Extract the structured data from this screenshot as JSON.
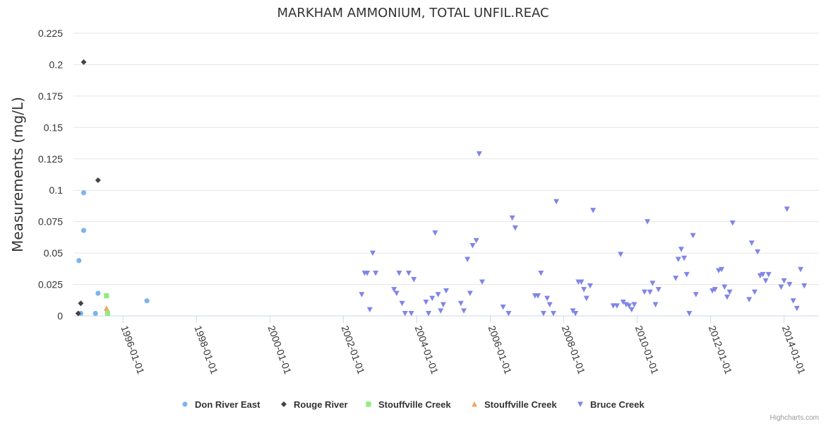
{
  "credit": "Highcharts.com",
  "chart_data": {
    "type": "scatter",
    "title": "MARKHAM AMMONIUM, TOTAL UNFIL.REAC",
    "xlabel": "",
    "ylabel": "Measurements (mg/L)",
    "ylim": [
      0,
      0.225
    ],
    "yticks": [
      "0",
      "0.025",
      "0.05",
      "0.075",
      "0.1",
      "0.125",
      "0.15",
      "0.175",
      "0.2",
      "0.225"
    ],
    "xlim": [
      1994.65,
      2014.95
    ],
    "xticks": [
      {
        "label": "1996-01-01",
        "x": 1996.0
      },
      {
        "label": "1998-01-01",
        "x": 1998.0
      },
      {
        "label": "2000-01-01",
        "x": 2000.0
      },
      {
        "label": "2002-01-01",
        "x": 2002.0
      },
      {
        "label": "2004-01-01",
        "x": 2004.0
      },
      {
        "label": "2006-01-01",
        "x": 2006.0
      },
      {
        "label": "2008-01-01",
        "x": 2008.0
      },
      {
        "label": "2010-01-01",
        "x": 2010.0
      },
      {
        "label": "2012-01-01",
        "x": 2012.0
      },
      {
        "label": "2014-01-01",
        "x": 2014.0
      }
    ],
    "legend_position": "bottom-center",
    "series": [
      {
        "name": "Don River East",
        "color": "#7cb5ec",
        "marker": "circle",
        "points": [
          [
            1994.8,
            0.044
          ],
          [
            1994.85,
            0.002
          ],
          [
            1994.93,
            0.098
          ],
          [
            1994.93,
            0.068
          ],
          [
            1995.25,
            0.002
          ],
          [
            1995.32,
            0.018
          ],
          [
            1996.65,
            0.012
          ]
        ]
      },
      {
        "name": "Rouge River",
        "color": "#434348",
        "marker": "diamond",
        "points": [
          [
            1994.78,
            0.002
          ],
          [
            1994.85,
            0.01
          ],
          [
            1994.93,
            0.202
          ],
          [
            1995.32,
            0.108
          ]
        ]
      },
      {
        "name": "Stouffville Creek",
        "color": "#90ed7d",
        "marker": "square",
        "points": [
          [
            1995.55,
            0.016
          ],
          [
            1995.58,
            0.002
          ]
        ]
      },
      {
        "name": "Stouffville Creek",
        "color": "#f7a35c",
        "marker": "triangle",
        "points": [
          [
            1995.55,
            0.006
          ]
        ]
      },
      {
        "name": "Bruce Creek",
        "color": "#8085e9",
        "marker": "triangle-down",
        "points": [
          [
            2002.5,
            0.017
          ],
          [
            2002.58,
            0.034
          ],
          [
            2002.65,
            0.034
          ],
          [
            2002.72,
            0.005
          ],
          [
            2002.8,
            0.05
          ],
          [
            2002.88,
            0.034
          ],
          [
            2003.38,
            0.021
          ],
          [
            2003.45,
            0.018
          ],
          [
            2003.52,
            0.034
          ],
          [
            2003.6,
            0.01
          ],
          [
            2003.68,
            0.002
          ],
          [
            2003.78,
            0.034
          ],
          [
            2003.85,
            0.002
          ],
          [
            2003.92,
            0.029
          ],
          [
            2004.25,
            0.011
          ],
          [
            2004.32,
            0.002
          ],
          [
            2004.42,
            0.014
          ],
          [
            2004.5,
            0.066
          ],
          [
            2004.58,
            0.017
          ],
          [
            2004.65,
            0.004
          ],
          [
            2004.72,
            0.009
          ],
          [
            2004.8,
            0.02
          ],
          [
            2005.2,
            0.01
          ],
          [
            2005.28,
            0.004
          ],
          [
            2005.38,
            0.045
          ],
          [
            2005.45,
            0.018
          ],
          [
            2005.52,
            0.056
          ],
          [
            2005.62,
            0.06
          ],
          [
            2005.7,
            0.129
          ],
          [
            2005.78,
            0.027
          ],
          [
            2006.35,
            0.007
          ],
          [
            2006.5,
            0.002
          ],
          [
            2006.6,
            0.078
          ],
          [
            2006.68,
            0.07
          ],
          [
            2007.22,
            0.016
          ],
          [
            2007.3,
            0.016
          ],
          [
            2007.38,
            0.034
          ],
          [
            2007.45,
            0.002
          ],
          [
            2007.55,
            0.014
          ],
          [
            2007.62,
            0.009
          ],
          [
            2007.72,
            0.002
          ],
          [
            2007.8,
            0.091
          ],
          [
            2008.25,
            0.004
          ],
          [
            2008.32,
            0.002
          ],
          [
            2008.4,
            0.027
          ],
          [
            2008.48,
            0.027
          ],
          [
            2008.55,
            0.021
          ],
          [
            2008.62,
            0.014
          ],
          [
            2008.72,
            0.024
          ],
          [
            2008.8,
            0.084
          ],
          [
            2009.35,
            0.008
          ],
          [
            2009.45,
            0.008
          ],
          [
            2009.55,
            0.049
          ],
          [
            2009.62,
            0.011
          ],
          [
            2009.7,
            0.009
          ],
          [
            2009.78,
            0.008
          ],
          [
            2009.85,
            0.005
          ],
          [
            2009.92,
            0.009
          ],
          [
            2010.2,
            0.019
          ],
          [
            2010.28,
            0.075
          ],
          [
            2010.35,
            0.019
          ],
          [
            2010.42,
            0.026
          ],
          [
            2010.5,
            0.009
          ],
          [
            2010.58,
            0.021
          ],
          [
            2011.05,
            0.03
          ],
          [
            2011.12,
            0.045
          ],
          [
            2011.2,
            0.053
          ],
          [
            2011.28,
            0.046
          ],
          [
            2011.35,
            0.033
          ],
          [
            2011.42,
            0.002
          ],
          [
            2011.52,
            0.064
          ],
          [
            2011.6,
            0.017
          ],
          [
            2012.05,
            0.02
          ],
          [
            2012.12,
            0.021
          ],
          [
            2012.22,
            0.036
          ],
          [
            2012.3,
            0.037
          ],
          [
            2012.38,
            0.023
          ],
          [
            2012.45,
            0.015
          ],
          [
            2012.52,
            0.019
          ],
          [
            2012.6,
            0.074
          ],
          [
            2013.05,
            0.013
          ],
          [
            2013.12,
            0.058
          ],
          [
            2013.2,
            0.019
          ],
          [
            2013.28,
            0.051
          ],
          [
            2013.35,
            0.032
          ],
          [
            2013.42,
            0.033
          ],
          [
            2013.5,
            0.028
          ],
          [
            2013.58,
            0.033
          ],
          [
            2013.92,
            0.023
          ],
          [
            2014.0,
            0.028
          ],
          [
            2014.08,
            0.085
          ],
          [
            2014.15,
            0.025
          ],
          [
            2014.25,
            0.012
          ],
          [
            2014.35,
            0.006
          ],
          [
            2014.45,
            0.037
          ],
          [
            2014.55,
            0.024
          ]
        ]
      }
    ]
  }
}
